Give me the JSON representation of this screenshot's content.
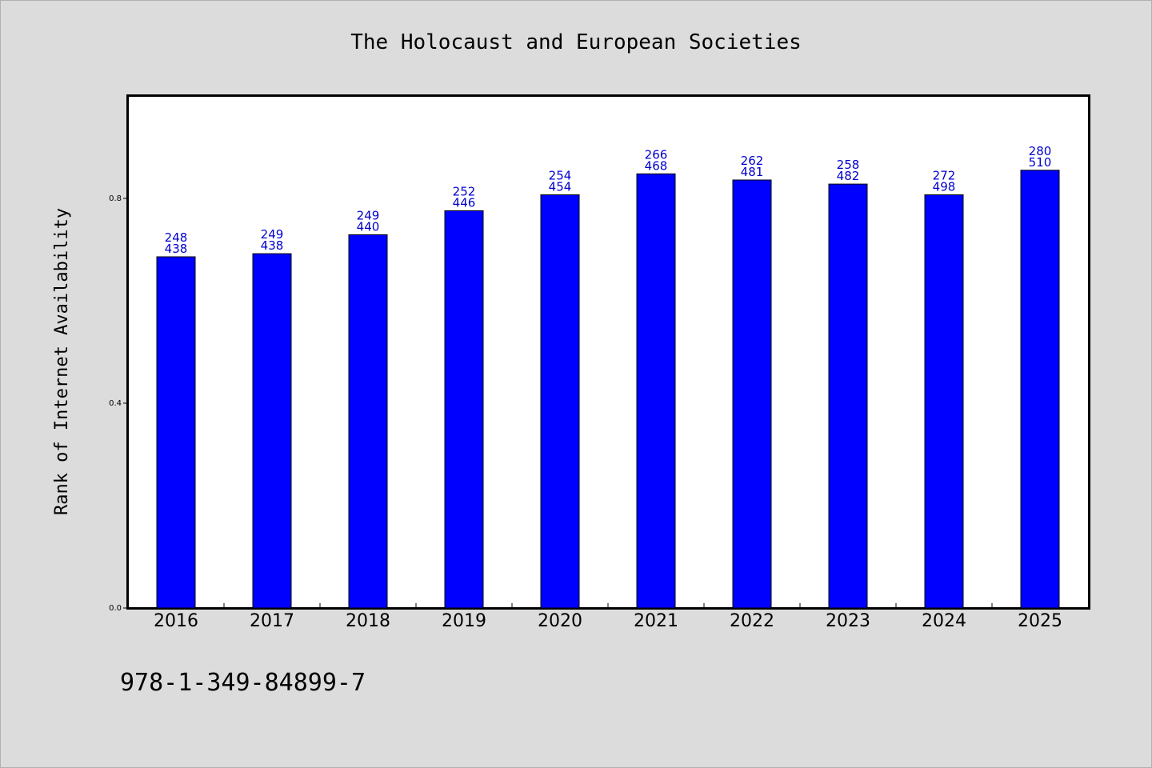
{
  "chart_data": {
    "type": "bar",
    "title": "The Holocaust and European Societies",
    "xlabel": "",
    "ylabel": "Rank of Internet Availability",
    "categories": [
      "2016",
      "2017",
      "2018",
      "2019",
      "2020",
      "2021",
      "2022",
      "2023",
      "2024",
      "2025"
    ],
    "series": [
      {
        "values": [
          0.686,
          0.692,
          0.729,
          0.776,
          0.807,
          0.848,
          0.836,
          0.828,
          0.807,
          0.855
        ],
        "color": "#0000ff"
      }
    ],
    "data_labels": [
      [
        "248",
        "438"
      ],
      [
        "249",
        "438"
      ],
      [
        "249",
        "440"
      ],
      [
        "252",
        "446"
      ],
      [
        "254",
        "454"
      ],
      [
        "266",
        "468"
      ],
      [
        "262",
        "481"
      ],
      [
        "258",
        "482"
      ],
      [
        "272",
        "498"
      ],
      [
        "280",
        "510"
      ]
    ],
    "yticks": [
      {
        "value": 0.0,
        "label": "0.0"
      },
      {
        "value": 0.4,
        "label": "0.4"
      },
      {
        "value": 0.8,
        "label": "0.8"
      }
    ],
    "ylim": [
      0,
      1.0
    ],
    "grid": false,
    "legend": "none",
    "label_color": "#0000cc"
  },
  "footer": "978-1-349-84899-7"
}
